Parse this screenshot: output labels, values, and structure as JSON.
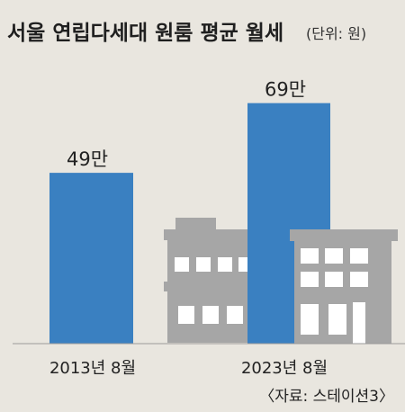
{
  "chart_data": {
    "type": "bar",
    "title": "서울 연립다세대 원룸 평균 월세",
    "unit_note": "(단위: 원)",
    "categories": [
      "2013년 8월",
      "2023년 8월"
    ],
    "values": [
      490000,
      690000
    ],
    "data_labels": [
      "49만",
      "69만"
    ],
    "ylim": [
      0,
      800000
    ],
    "grid": false,
    "source": "〈자료: 스테이션3〉",
    "colors": {
      "bar": "#3a80c1",
      "background": "#e9e6df",
      "building": "#a6a6a6",
      "window": "#ffffff"
    }
  }
}
